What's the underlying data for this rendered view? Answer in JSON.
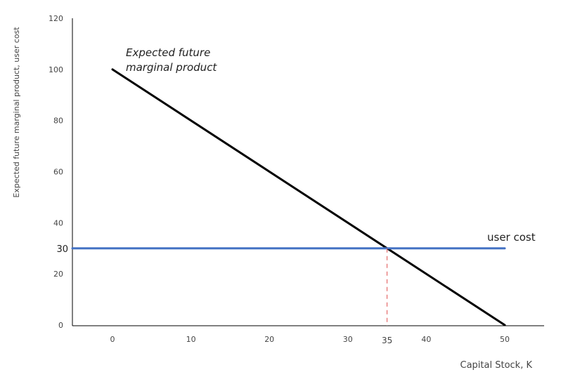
{
  "chart_data": {
    "type": "line",
    "title": "",
    "xlabel": "Capital Stock, K",
    "ylabel": "Expected future marginal product, user cost",
    "xlim": [
      -5,
      55
    ],
    "ylim": [
      0,
      120
    ],
    "x_ticks": [
      "0",
      "10",
      "20",
      "30",
      "40",
      "50"
    ],
    "y_ticks": [
      "0",
      "20",
      "40",
      "60",
      "80",
      "100",
      "120"
    ],
    "grid": false,
    "series": [
      {
        "name": "Expected future marginal product",
        "color": "#000000",
        "x": [
          0,
          50
        ],
        "y": [
          100,
          0
        ]
      },
      {
        "name": "user cost",
        "color": "#4472C4",
        "x": [
          -5,
          50
        ],
        "y": [
          30,
          30
        ]
      }
    ],
    "annotations": {
      "mpk_label_line1": "Expected future",
      "mpk_label_line2": "marginal product",
      "user_cost_label": "user cost",
      "intersection_x_label": "35",
      "intersection_y_label": "30",
      "intersection": {
        "x": 35,
        "y": 30
      },
      "intersection_color": "#E05050"
    }
  }
}
